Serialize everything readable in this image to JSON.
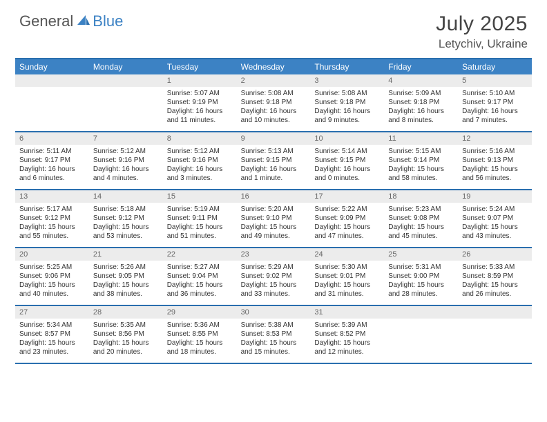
{
  "logo": {
    "text1": "General",
    "text2": "Blue"
  },
  "title": {
    "month": "July 2025",
    "location": "Letychiv, Ukraine"
  },
  "style": {
    "accent": "#3c82c4",
    "accent_dark": "#2a6faf",
    "daynum_bg": "#ececec",
    "header_text": "#ffffff",
    "body_text": "#333333",
    "cell_fontsize": 10,
    "head_fontsize": 12,
    "title_fontsize": 30
  },
  "daynames": [
    "Sunday",
    "Monday",
    "Tuesday",
    "Wednesday",
    "Thursday",
    "Friday",
    "Saturday"
  ],
  "weeks": [
    [
      {
        "n": "",
        "sr": "",
        "ss": "",
        "dl": ""
      },
      {
        "n": "",
        "sr": "",
        "ss": "",
        "dl": ""
      },
      {
        "n": "1",
        "sr": "Sunrise: 5:07 AM",
        "ss": "Sunset: 9:19 PM",
        "dl": "Daylight: 16 hours and 11 minutes."
      },
      {
        "n": "2",
        "sr": "Sunrise: 5:08 AM",
        "ss": "Sunset: 9:18 PM",
        "dl": "Daylight: 16 hours and 10 minutes."
      },
      {
        "n": "3",
        "sr": "Sunrise: 5:08 AM",
        "ss": "Sunset: 9:18 PM",
        "dl": "Daylight: 16 hours and 9 minutes."
      },
      {
        "n": "4",
        "sr": "Sunrise: 5:09 AM",
        "ss": "Sunset: 9:18 PM",
        "dl": "Daylight: 16 hours and 8 minutes."
      },
      {
        "n": "5",
        "sr": "Sunrise: 5:10 AM",
        "ss": "Sunset: 9:17 PM",
        "dl": "Daylight: 16 hours and 7 minutes."
      }
    ],
    [
      {
        "n": "6",
        "sr": "Sunrise: 5:11 AM",
        "ss": "Sunset: 9:17 PM",
        "dl": "Daylight: 16 hours and 6 minutes."
      },
      {
        "n": "7",
        "sr": "Sunrise: 5:12 AM",
        "ss": "Sunset: 9:16 PM",
        "dl": "Daylight: 16 hours and 4 minutes."
      },
      {
        "n": "8",
        "sr": "Sunrise: 5:12 AM",
        "ss": "Sunset: 9:16 PM",
        "dl": "Daylight: 16 hours and 3 minutes."
      },
      {
        "n": "9",
        "sr": "Sunrise: 5:13 AM",
        "ss": "Sunset: 9:15 PM",
        "dl": "Daylight: 16 hours and 1 minute."
      },
      {
        "n": "10",
        "sr": "Sunrise: 5:14 AM",
        "ss": "Sunset: 9:15 PM",
        "dl": "Daylight: 16 hours and 0 minutes."
      },
      {
        "n": "11",
        "sr": "Sunrise: 5:15 AM",
        "ss": "Sunset: 9:14 PM",
        "dl": "Daylight: 15 hours and 58 minutes."
      },
      {
        "n": "12",
        "sr": "Sunrise: 5:16 AM",
        "ss": "Sunset: 9:13 PM",
        "dl": "Daylight: 15 hours and 56 minutes."
      }
    ],
    [
      {
        "n": "13",
        "sr": "Sunrise: 5:17 AM",
        "ss": "Sunset: 9:12 PM",
        "dl": "Daylight: 15 hours and 55 minutes."
      },
      {
        "n": "14",
        "sr": "Sunrise: 5:18 AM",
        "ss": "Sunset: 9:12 PM",
        "dl": "Daylight: 15 hours and 53 minutes."
      },
      {
        "n": "15",
        "sr": "Sunrise: 5:19 AM",
        "ss": "Sunset: 9:11 PM",
        "dl": "Daylight: 15 hours and 51 minutes."
      },
      {
        "n": "16",
        "sr": "Sunrise: 5:20 AM",
        "ss": "Sunset: 9:10 PM",
        "dl": "Daylight: 15 hours and 49 minutes."
      },
      {
        "n": "17",
        "sr": "Sunrise: 5:22 AM",
        "ss": "Sunset: 9:09 PM",
        "dl": "Daylight: 15 hours and 47 minutes."
      },
      {
        "n": "18",
        "sr": "Sunrise: 5:23 AM",
        "ss": "Sunset: 9:08 PM",
        "dl": "Daylight: 15 hours and 45 minutes."
      },
      {
        "n": "19",
        "sr": "Sunrise: 5:24 AM",
        "ss": "Sunset: 9:07 PM",
        "dl": "Daylight: 15 hours and 43 minutes."
      }
    ],
    [
      {
        "n": "20",
        "sr": "Sunrise: 5:25 AM",
        "ss": "Sunset: 9:06 PM",
        "dl": "Daylight: 15 hours and 40 minutes."
      },
      {
        "n": "21",
        "sr": "Sunrise: 5:26 AM",
        "ss": "Sunset: 9:05 PM",
        "dl": "Daylight: 15 hours and 38 minutes."
      },
      {
        "n": "22",
        "sr": "Sunrise: 5:27 AM",
        "ss": "Sunset: 9:04 PM",
        "dl": "Daylight: 15 hours and 36 minutes."
      },
      {
        "n": "23",
        "sr": "Sunrise: 5:29 AM",
        "ss": "Sunset: 9:02 PM",
        "dl": "Daylight: 15 hours and 33 minutes."
      },
      {
        "n": "24",
        "sr": "Sunrise: 5:30 AM",
        "ss": "Sunset: 9:01 PM",
        "dl": "Daylight: 15 hours and 31 minutes."
      },
      {
        "n": "25",
        "sr": "Sunrise: 5:31 AM",
        "ss": "Sunset: 9:00 PM",
        "dl": "Daylight: 15 hours and 28 minutes."
      },
      {
        "n": "26",
        "sr": "Sunrise: 5:33 AM",
        "ss": "Sunset: 8:59 PM",
        "dl": "Daylight: 15 hours and 26 minutes."
      }
    ],
    [
      {
        "n": "27",
        "sr": "Sunrise: 5:34 AM",
        "ss": "Sunset: 8:57 PM",
        "dl": "Daylight: 15 hours and 23 minutes."
      },
      {
        "n": "28",
        "sr": "Sunrise: 5:35 AM",
        "ss": "Sunset: 8:56 PM",
        "dl": "Daylight: 15 hours and 20 minutes."
      },
      {
        "n": "29",
        "sr": "Sunrise: 5:36 AM",
        "ss": "Sunset: 8:55 PM",
        "dl": "Daylight: 15 hours and 18 minutes."
      },
      {
        "n": "30",
        "sr": "Sunrise: 5:38 AM",
        "ss": "Sunset: 8:53 PM",
        "dl": "Daylight: 15 hours and 15 minutes."
      },
      {
        "n": "31",
        "sr": "Sunrise: 5:39 AM",
        "ss": "Sunset: 8:52 PM",
        "dl": "Daylight: 15 hours and 12 minutes."
      },
      {
        "n": "",
        "sr": "",
        "ss": "",
        "dl": ""
      },
      {
        "n": "",
        "sr": "",
        "ss": "",
        "dl": ""
      }
    ]
  ]
}
